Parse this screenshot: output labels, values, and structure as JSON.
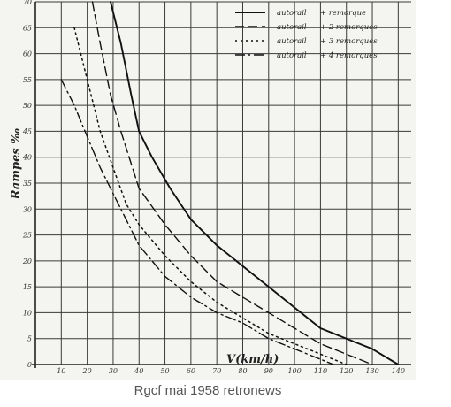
{
  "caption": "Rgcf mai 1958 retronews",
  "chart_data": {
    "type": "line",
    "xlabel": "V(km/h)",
    "ylabel": "Rampes ‰",
    "xlim": [
      0,
      145
    ],
    "ylim": [
      0,
      70
    ],
    "x_ticks": [
      10,
      20,
      30,
      40,
      50,
      60,
      70,
      80,
      90,
      100,
      110,
      120,
      130,
      140
    ],
    "y_ticks": [
      0,
      5,
      10,
      15,
      20,
      25,
      30,
      35,
      40,
      45,
      50,
      55,
      60,
      65,
      70
    ],
    "grid": true,
    "legend_position": "top-right",
    "series": [
      {
        "name": "autorail + remorque",
        "legend_label": "autorail",
        "legend_suffix": "+   remorque",
        "style": "solid",
        "x": [
          29,
          33,
          37,
          40,
          45,
          52,
          60,
          70,
          80,
          90,
          100,
          110,
          120,
          130,
          140
        ],
        "y": [
          70,
          62,
          52,
          45,
          40,
          34,
          28,
          23,
          19,
          15,
          11,
          7,
          5,
          3,
          0
        ]
      },
      {
        "name": "autorail + 2 remorques",
        "legend_label": "autorail",
        "legend_suffix": "+   2  remorques",
        "style": "dashed",
        "x": [
          22,
          25,
          29,
          33,
          40,
          50,
          60,
          70,
          80,
          90,
          100,
          110,
          120,
          130
        ],
        "y": [
          70,
          62,
          52,
          45,
          34,
          27,
          21,
          16,
          13,
          10,
          7,
          4,
          2,
          0
        ]
      },
      {
        "name": "autorail + 3 remorques",
        "legend_label": "autorail",
        "legend_suffix": "+   3  remorques",
        "style": "dotted",
        "x": [
          15,
          20,
          25,
          30,
          35,
          40,
          50,
          60,
          70,
          80,
          90,
          100,
          110,
          120
        ],
        "y": [
          65,
          55,
          45,
          38,
          31,
          27,
          21,
          16,
          12,
          9,
          6,
          4,
          2,
          0
        ]
      },
      {
        "name": "autorail + 4 remorques",
        "legend_label": "autorail",
        "legend_suffix": "+   4  remorques",
        "style": "dashdot",
        "x": [
          10,
          15,
          20,
          25,
          30,
          35,
          40,
          50,
          60,
          70,
          80,
          90,
          100,
          110,
          115
        ],
        "y": [
          55,
          50,
          44,
          38,
          33,
          28,
          23,
          17,
          13,
          10,
          8,
          5,
          3,
          1,
          0
        ]
      }
    ]
  }
}
